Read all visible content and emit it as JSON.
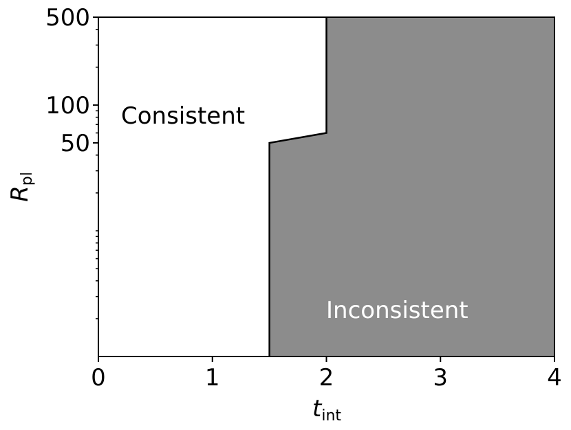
{
  "chart_data": {
    "type": "region",
    "series": [
      {
        "name": "boundary",
        "color": "#8c8c8c",
        "x": [
          1.5,
          1.5,
          2,
          2
        ],
        "y": [
          1,
          50,
          60,
          500
        ]
      }
    ],
    "xlim": [
      0,
      4
    ],
    "xticks": [
      0,
      1,
      2,
      3,
      4
    ],
    "ylim": [
      1,
      500
    ],
    "yticks": [
      50,
      100,
      500
    ],
    "ylog": true,
    "yminor_ticks": [
      2,
      3,
      4,
      5,
      6,
      7,
      8,
      9,
      10,
      20,
      30,
      40,
      60,
      70,
      80,
      90,
      200,
      300,
      400
    ],
    "xlabel": "t",
    "xlabel_sub": "int",
    "ylabel": "R",
    "ylabel_sub": "pl",
    "annotations": [
      {
        "text": "Consistent"
      },
      {
        "text": "Inconsistent"
      }
    ]
  }
}
